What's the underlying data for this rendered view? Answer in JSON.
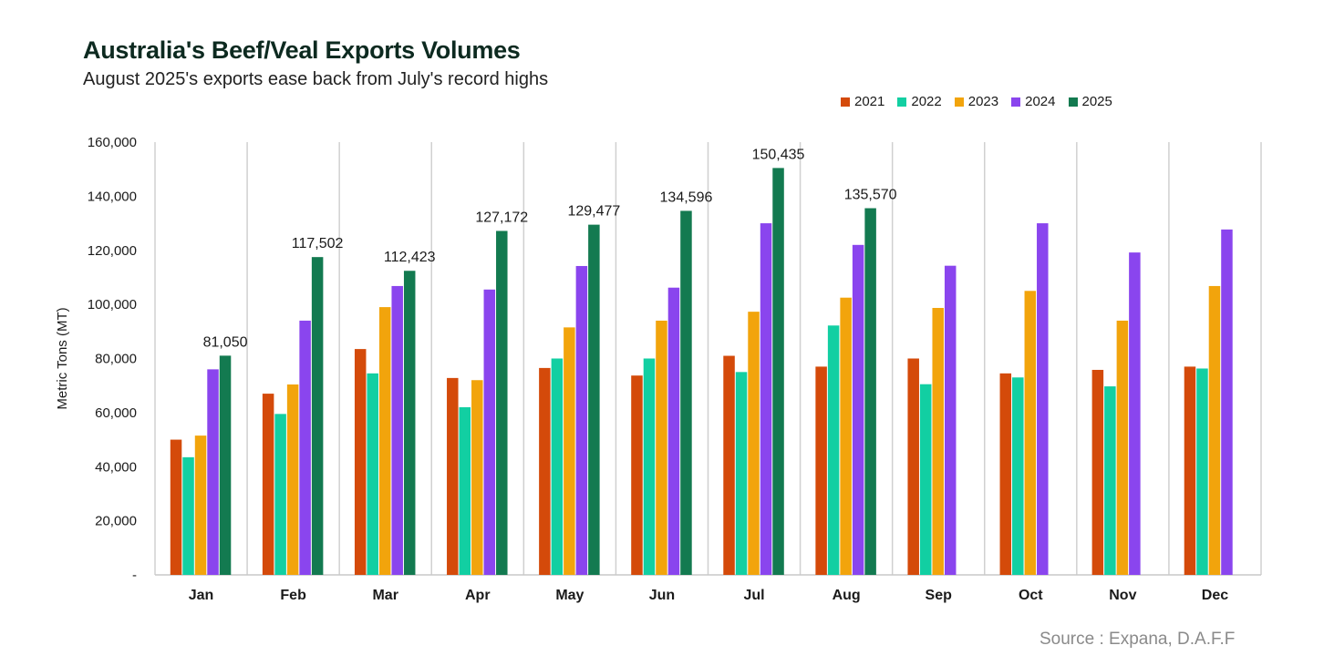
{
  "title": "Australia's Beef/Veal Exports Volumes",
  "subtitle": "August 2025's exports ease back from July's record highs",
  "source": "Source : Expana, D.A.F.F",
  "chart_data": {
    "type": "bar",
    "ylabel": "Metric Tons (MT)",
    "xlabel": "",
    "ylim": [
      0,
      160000
    ],
    "yticks": [
      0,
      20000,
      40000,
      60000,
      80000,
      100000,
      120000,
      140000,
      160000
    ],
    "ytick_labels": [
      "-",
      "20,000",
      "40,000",
      "60,000",
      "80,000",
      "100,000",
      "120,000",
      "140,000",
      "160,000"
    ],
    "categories": [
      "Jan",
      "Feb",
      "Mar",
      "Apr",
      "May",
      "Jun",
      "Jul",
      "Aug",
      "Sep",
      "Oct",
      "Nov",
      "Dec"
    ],
    "legend_position": "top-right",
    "grid": "vertical separators between months",
    "series": [
      {
        "name": "2021",
        "color": "#d44a0a",
        "values": [
          50000,
          67000,
          83500,
          72800,
          76500,
          73700,
          81000,
          77000,
          80000,
          74500,
          75800,
          77000
        ]
      },
      {
        "name": "2022",
        "color": "#12cfa2",
        "values": [
          43500,
          59500,
          74500,
          62000,
          80000,
          80000,
          75000,
          92200,
          70500,
          73000,
          69700,
          76300
        ]
      },
      {
        "name": "2023",
        "color": "#f2a40c",
        "values": [
          51500,
          70400,
          99000,
          72000,
          91500,
          94000,
          97300,
          102500,
          98700,
          105000,
          94000,
          106800
        ]
      },
      {
        "name": "2024",
        "color": "#8a45ee",
        "values": [
          76000,
          94000,
          106800,
          105500,
          114200,
          106200,
          130000,
          122000,
          114300,
          130000,
          119200,
          127700
        ]
      },
      {
        "name": "2025",
        "color": "#137a50",
        "values": [
          81050,
          117502,
          112423,
          127172,
          129477,
          134596,
          150435,
          135570,
          null,
          null,
          null,
          null
        ]
      }
    ],
    "data_labels": [
      "81,050",
      "117,502",
      "112,423",
      "127,172",
      "129,477",
      "134,596",
      "150,435",
      "135,570"
    ]
  }
}
